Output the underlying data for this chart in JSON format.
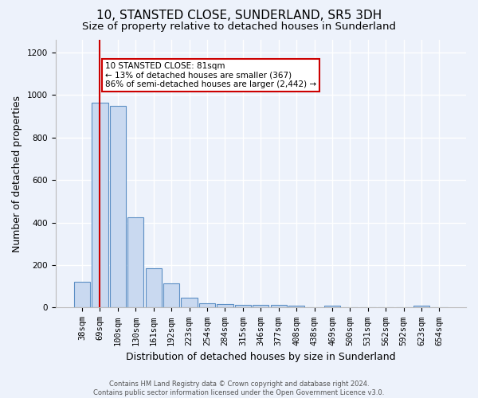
{
  "title": "10, STANSTED CLOSE, SUNDERLAND, SR5 3DH",
  "subtitle": "Size of property relative to detached houses in Sunderland",
  "xlabel": "Distribution of detached houses by size in Sunderland",
  "ylabel": "Number of detached properties",
  "footer_line1": "Contains HM Land Registry data © Crown copyright and database right 2024.",
  "footer_line2": "Contains public sector information licensed under the Open Government Licence v3.0.",
  "categories": [
    "38sqm",
    "69sqm",
    "100sqm",
    "130sqm",
    "161sqm",
    "192sqm",
    "223sqm",
    "254sqm",
    "284sqm",
    "315sqm",
    "346sqm",
    "377sqm",
    "408sqm",
    "438sqm",
    "469sqm",
    "500sqm",
    "531sqm",
    "562sqm",
    "592sqm",
    "623sqm",
    "654sqm"
  ],
  "values": [
    120,
    965,
    950,
    425,
    185,
    115,
    45,
    20,
    18,
    13,
    13,
    13,
    10,
    0,
    10,
    0,
    0,
    0,
    0,
    10,
    0
  ],
  "bar_color": "#c9d9f0",
  "bar_edge_color": "#5b8ec4",
  "vline_x": 1,
  "vline_color": "#cc0000",
  "annotation_line1": "10 STANSTED CLOSE: 81sqm",
  "annotation_line2": "← 13% of detached houses are smaller (367)",
  "annotation_line3": "86% of semi-detached houses are larger (2,442) →",
  "annotation_box_color": "#ffffff",
  "annotation_box_edge_color": "#cc0000",
  "ylim": [
    0,
    1260
  ],
  "yticks": [
    0,
    200,
    400,
    600,
    800,
    1000,
    1200
  ],
  "bg_color": "#edf2fb",
  "plot_bg_color": "#edf2fb",
  "grid_color": "#ffffff",
  "title_fontsize": 11,
  "subtitle_fontsize": 9.5,
  "tick_fontsize": 7.5,
  "ylabel_fontsize": 9,
  "xlabel_fontsize": 9,
  "annotation_fontsize": 7.5,
  "footer_fontsize": 6
}
